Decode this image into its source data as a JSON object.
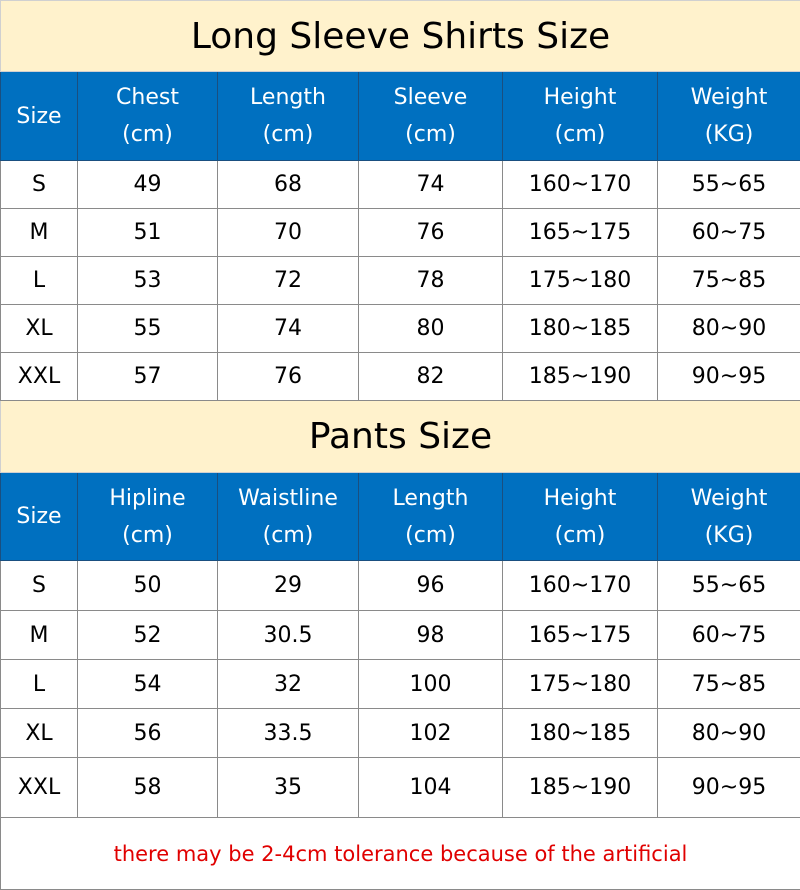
{
  "shirts": {
    "title": "Long Sleeve Shirts Size",
    "headers": [
      {
        "l1": "Size",
        "l2": ""
      },
      {
        "l1": "Chest",
        "l2": "(cm)"
      },
      {
        "l1": "Length",
        "l2": "(cm)"
      },
      {
        "l1": "Sleeve",
        "l2": "(cm)"
      },
      {
        "l1": "Height",
        "l2": "(cm)"
      },
      {
        "l1": "Weight",
        "l2": "(KG)"
      }
    ],
    "rows": [
      [
        "S",
        "49",
        "68",
        "74",
        "160~170",
        "55~65"
      ],
      [
        "M",
        "51",
        "70",
        "76",
        "165~175",
        "60~75"
      ],
      [
        "L",
        "53",
        "72",
        "78",
        "175~180",
        "75~85"
      ],
      [
        "XL",
        "55",
        "74",
        "80",
        "180~185",
        "80~90"
      ],
      [
        "XXL",
        "57",
        "76",
        "82",
        "185~190",
        "90~95"
      ]
    ]
  },
  "pants": {
    "title": "Pants Size",
    "headers": [
      {
        "l1": "Size",
        "l2": ""
      },
      {
        "l1": "Hipline",
        "l2": "(cm)"
      },
      {
        "l1": "Waistline",
        "l2": "(cm)"
      },
      {
        "l1": "Length",
        "l2": "(cm)"
      },
      {
        "l1": "Height",
        "l2": "(cm)"
      },
      {
        "l1": "Weight",
        "l2": "(KG)"
      }
    ],
    "rows": [
      [
        "S",
        "50",
        "29",
        "96",
        "160~170",
        "55~65"
      ],
      [
        "M",
        "52",
        "30.5",
        "98",
        "165~175",
        "60~75"
      ],
      [
        "L",
        "54",
        "32",
        "100",
        "175~180",
        "75~85"
      ],
      [
        "XL",
        "56",
        "33.5",
        "102",
        "180~185",
        "80~90"
      ],
      [
        "XXL",
        "58",
        "35",
        "104",
        "185~190",
        "90~95"
      ]
    ]
  },
  "footer_note": "there may be 2-4cm tolerance because of the artificial",
  "colors": {
    "title_bg": "#FFF2CC",
    "header_bg": "#0070C0",
    "note": "#E00000"
  }
}
